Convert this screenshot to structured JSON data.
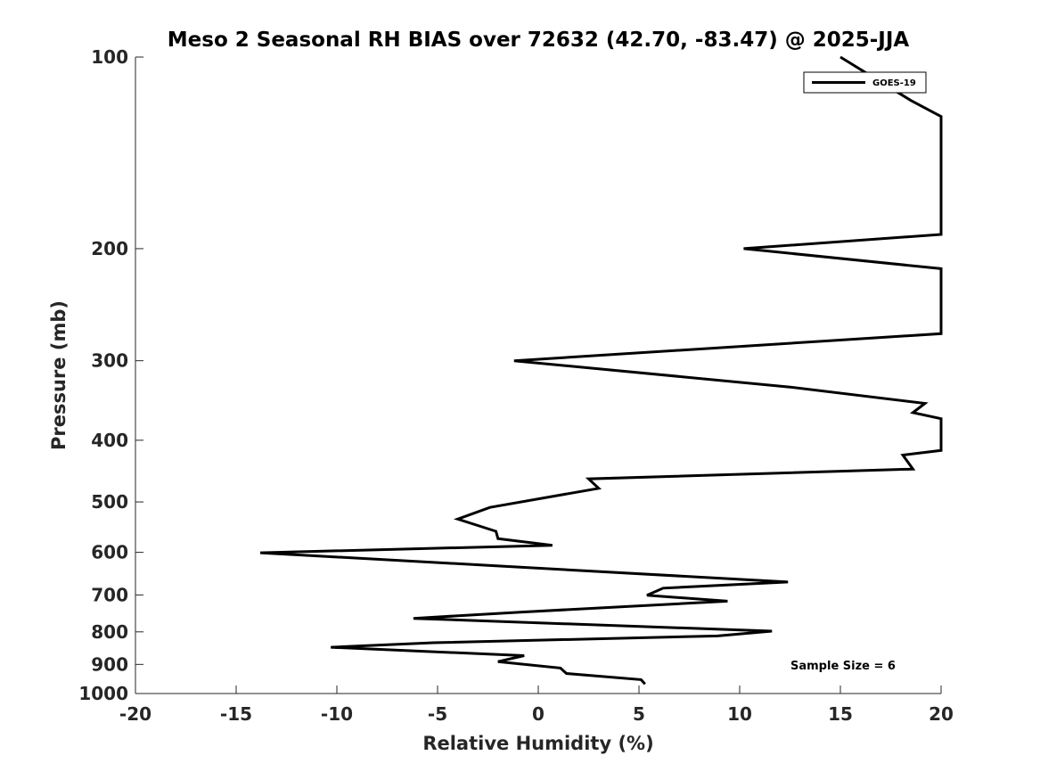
{
  "chart_data": {
    "type": "line",
    "title": "Meso 2 Seasonal RH BIAS over 72632 (42.70, -83.47) @ 2025-JJA",
    "xlabel": "Relative Humidity (%)",
    "ylabel": "Pressure (mb)",
    "xlim": [
      -20,
      20
    ],
    "ylim": [
      100,
      1000
    ],
    "y_scale": "log",
    "y_reversed": true,
    "x_ticks": [
      -20,
      -15,
      -10,
      -5,
      0,
      5,
      10,
      15,
      20
    ],
    "x_tick_labels": [
      "-20",
      "-15",
      "-10",
      "-5",
      "0",
      "5",
      "10",
      "15",
      "20"
    ],
    "y_ticks": [
      100,
      200,
      300,
      400,
      500,
      600,
      700,
      800,
      900,
      1000
    ],
    "y_tick_labels": [
      "100",
      "200",
      "300",
      "400",
      "500",
      "600",
      "700",
      "800",
      "900",
      "1000"
    ],
    "grid": false,
    "legend_position": "top-right",
    "annotation": "Sample Size = 6",
    "series": [
      {
        "name": "GOES-19",
        "color": "#000000",
        "points": [
          [
            15.0,
            100
          ],
          [
            18.5,
            117
          ],
          [
            20.0,
            124
          ],
          [
            20.0,
            190
          ],
          [
            10.2,
            200
          ],
          [
            20.0,
            215
          ],
          [
            20.0,
            272
          ],
          [
            -1.2,
            300
          ],
          [
            12.5,
            330
          ],
          [
            19.2,
            350
          ],
          [
            18.6,
            362
          ],
          [
            20.0,
            370
          ],
          [
            20.0,
            415
          ],
          [
            18.1,
            422
          ],
          [
            18.6,
            444
          ],
          [
            2.5,
            460
          ],
          [
            3.0,
            476
          ],
          [
            -2.4,
            510
          ],
          [
            -4.0,
            532
          ],
          [
            -2.1,
            556
          ],
          [
            -2.0,
            571
          ],
          [
            0.7,
            585
          ],
          [
            -13.8,
            601
          ],
          [
            12.4,
            668
          ],
          [
            6.2,
            683
          ],
          [
            5.4,
            701
          ],
          [
            9.4,
            716
          ],
          [
            -0.9,
            745
          ],
          [
            -6.2,
            762
          ],
          [
            11.6,
            798
          ],
          [
            8.9,
            812
          ],
          [
            -5.2,
            832
          ],
          [
            -10.3,
            846
          ],
          [
            -0.7,
            872
          ],
          [
            -2.0,
            891
          ],
          [
            1.1,
            912
          ],
          [
            1.4,
            930
          ],
          [
            5.1,
            951
          ],
          [
            5.3,
            966
          ]
        ]
      }
    ]
  }
}
